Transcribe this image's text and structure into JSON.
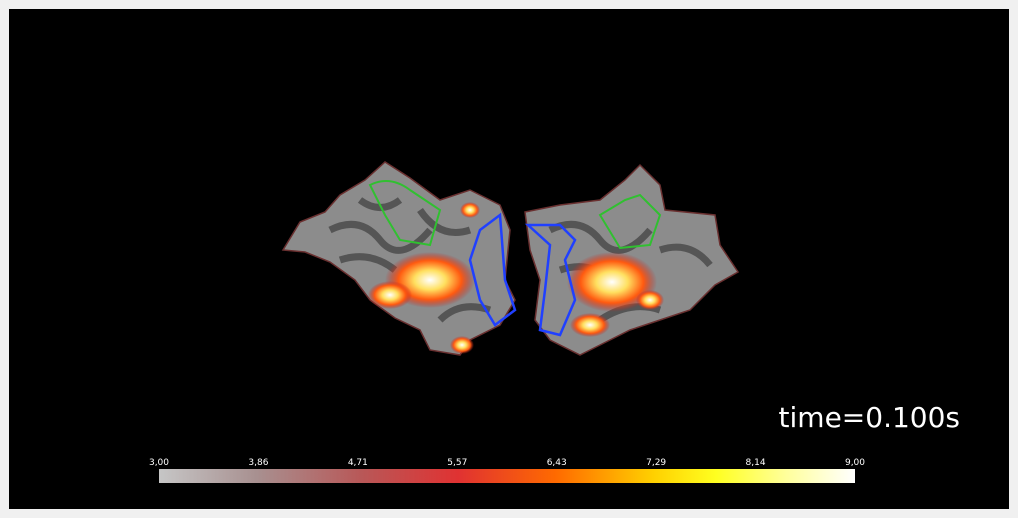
{
  "colorbar": {
    "ticks": [
      "3,00",
      "3,86",
      "4,71",
      "5,57",
      "6,43",
      "7,29",
      "8,14",
      "9,00"
    ]
  },
  "time_label": "time=0.100s"
}
